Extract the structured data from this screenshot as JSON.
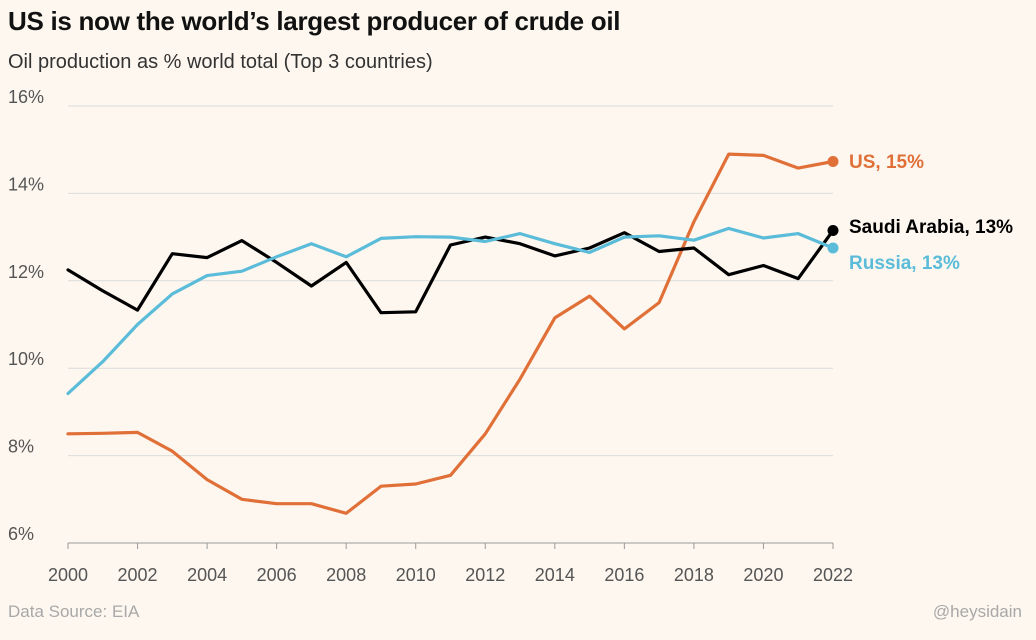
{
  "header": {
    "title": "US is now the world’s largest producer of crude oil",
    "subtitle": "Oil production as % world total  (Top 3 countries)"
  },
  "footer": {
    "source": "Data Source: EIA",
    "handle": "@heysidain"
  },
  "chart_data": {
    "type": "line",
    "title": "US is now the world’s largest producer of crude oil",
    "subtitle": "Oil production as % world total  (Top 3 countries)",
    "x": [
      2000,
      2001,
      2002,
      2003,
      2004,
      2005,
      2006,
      2007,
      2008,
      2009,
      2010,
      2011,
      2012,
      2013,
      2014,
      2015,
      2016,
      2017,
      2018,
      2019,
      2020,
      2021,
      2022
    ],
    "xticks": [
      2000,
      2002,
      2004,
      2006,
      2008,
      2010,
      2012,
      2014,
      2016,
      2018,
      2020,
      2022
    ],
    "xtick_labels": [
      "2000",
      "2002",
      "2004",
      "2006",
      "2008",
      "2010",
      "2012",
      "2014",
      "2016",
      "2018",
      "2020",
      "2022"
    ],
    "yticks": [
      6,
      8,
      10,
      12,
      14,
      16
    ],
    "ytick_labels": [
      "6%",
      "8%",
      "10%",
      "12%",
      "14%",
      "16%"
    ],
    "ylim": [
      6,
      16
    ],
    "xlim": [
      2000,
      2022
    ],
    "grid": "horizontal",
    "legend": "direct labels at line ends (right)",
    "series": [
      {
        "name": "US",
        "end_label": "US, 15%",
        "color": "#e07038",
        "values": [
          8.5,
          8.51,
          8.53,
          8.1,
          7.45,
          7.0,
          6.9,
          6.9,
          6.68,
          7.3,
          7.35,
          7.55,
          8.5,
          9.75,
          11.15,
          11.65,
          10.9,
          11.5,
          13.35,
          14.9,
          14.87,
          14.58,
          14.73
        ]
      },
      {
        "name": "Saudi Arabia",
        "end_label": "Saudi Arabia, 13%",
        "color": "#000000",
        "values": [
          12.25,
          11.77,
          11.33,
          12.62,
          12.53,
          12.92,
          12.42,
          11.88,
          12.42,
          11.27,
          11.29,
          12.82,
          13.0,
          12.85,
          12.57,
          12.75,
          13.1,
          12.67,
          12.75,
          12.14,
          12.35,
          12.05,
          13.15
        ]
      },
      {
        "name": "Russia",
        "end_label": "Russia, 13%",
        "color": "#5bbcd9",
        "values": [
          9.42,
          10.15,
          11.0,
          11.7,
          12.12,
          12.22,
          12.55,
          12.85,
          12.55,
          12.97,
          13.01,
          13.0,
          12.9,
          13.08,
          12.85,
          12.65,
          13.0,
          13.03,
          12.93,
          13.2,
          12.98,
          13.08,
          12.75
        ]
      }
    ]
  }
}
